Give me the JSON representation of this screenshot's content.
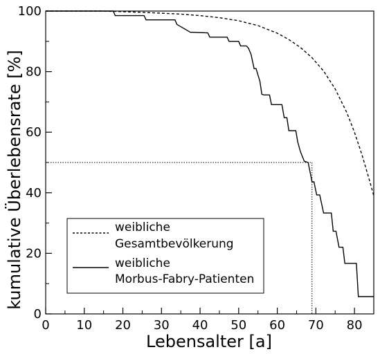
{
  "chart_data": {
    "type": "line",
    "xlabel": "Lebensalter [a]",
    "ylabel": "kumulative Überlebensrate [%]",
    "xlim": [
      0,
      85
    ],
    "ylim": [
      0,
      100
    ],
    "x_ticks": [
      0,
      10,
      20,
      30,
      40,
      50,
      60,
      70,
      80
    ],
    "y_ticks": [
      0,
      20,
      40,
      60,
      80,
      100
    ],
    "x_tick_labels": [
      "0",
      "10",
      "20",
      "30",
      "40",
      "50",
      "60",
      "70",
      "80"
    ],
    "y_tick_labels": [
      "0",
      "20",
      "40",
      "60",
      "80",
      "100"
    ],
    "grid": false,
    "legend_position": "bottom-left",
    "series": [
      {
        "name": "weibliche Gesamtbevölkerung",
        "legend_lines": [
          "weibliche",
          "Gesamtbevölkerung"
        ],
        "style": "dashed",
        "x": [
          0,
          15,
          20,
          25,
          30,
          35,
          40,
          45,
          50,
          55,
          60,
          63,
          66,
          69,
          72,
          75,
          78,
          80,
          82,
          84,
          85
        ],
        "y": [
          100,
          100,
          99.8,
          99.6,
          99.3,
          99.0,
          98.5,
          97.8,
          96.8,
          95.2,
          92.7,
          90.6,
          88.0,
          84.6,
          80.2,
          74.3,
          66.5,
          60.0,
          52.3,
          43.6,
          39.0
        ]
      },
      {
        "name": "weibliche Morbus-Fabry-Patienten",
        "legend_lines": [
          "weibliche",
          "Morbus-Fabry-Patienten"
        ],
        "style": "solid-step",
        "x": [
          0,
          17.5,
          18,
          25.5,
          26,
          33.5,
          34,
          37.5,
          38,
          42,
          42.5,
          47,
          47.5,
          50,
          50.5,
          52,
          52.5,
          53.2,
          54,
          54.5,
          55.5,
          56,
          56.5,
          58,
          58.5,
          61.2,
          61.8,
          62.5,
          63,
          64.8,
          65.3,
          66,
          67,
          68,
          69,
          69.5,
          70.2,
          71,
          72,
          74,
          74.5,
          75.2,
          76,
          77,
          77.5,
          80.5,
          81,
          82,
          83,
          85
        ],
        "y": [
          100,
          100,
          98.5,
          98.5,
          97.1,
          97.1,
          95.6,
          93,
          93,
          92.8,
          91.4,
          91.4,
          90,
          90,
          88.5,
          88.5,
          87.8,
          85.7,
          81,
          81,
          76.8,
          72.5,
          72.3,
          72.3,
          69.1,
          69.1,
          64.8,
          64.8,
          60.5,
          60.5,
          56.8,
          53.6,
          50.4,
          50,
          43.6,
          43.6,
          39.3,
          39.3,
          33.3,
          33.3,
          27.3,
          27.3,
          22,
          22,
          16.7,
          16.7,
          5.7,
          5.7,
          5.7,
          5.7
        ]
      }
    ],
    "reference_line": {
      "y": 50,
      "x": 69,
      "style": "dotted"
    }
  }
}
